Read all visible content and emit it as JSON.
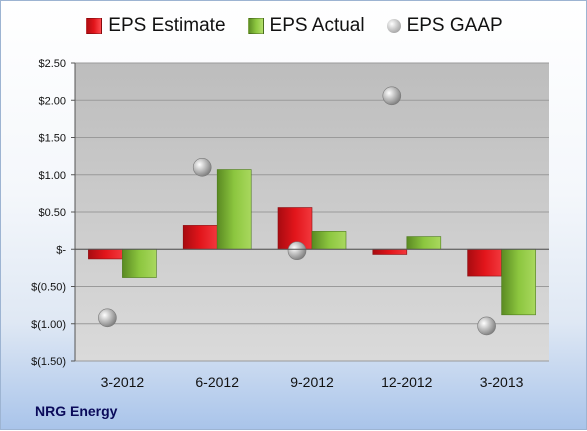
{
  "chart_data": {
    "type": "bar",
    "categories": [
      "3-2012",
      "6-2012",
      "9-2012",
      "12-2012",
      "3-2013"
    ],
    "series": [
      {
        "name": "EPS Estimate",
        "kind": "bar",
        "color": "#e2151b",
        "values": [
          -0.13,
          0.32,
          0.56,
          -0.07,
          -0.36
        ]
      },
      {
        "name": "EPS Actual",
        "kind": "bar",
        "color": "#8cc63f",
        "values": [
          -0.38,
          1.07,
          0.24,
          0.17,
          -0.88
        ]
      },
      {
        "name": "EPS GAAP",
        "kind": "scatter",
        "color": "#b5b5b5",
        "values": [
          -0.92,
          1.1,
          -0.02,
          2.06,
          -1.03
        ]
      }
    ],
    "ylim": [
      -1.5,
      2.5
    ],
    "yticks": [
      2.5,
      2.0,
      1.5,
      1.0,
      0.5,
      0,
      -0.5,
      -1.0,
      -1.5
    ],
    "ytick_labels": [
      "$2.50",
      "$2.00",
      "$1.50",
      "$1.00",
      "$0.50",
      "$-",
      "$(0.50)",
      "$(1.00)",
      "$(1.50)"
    ],
    "grid": true,
    "legend_position": "top",
    "footer": "NRG Energy"
  }
}
